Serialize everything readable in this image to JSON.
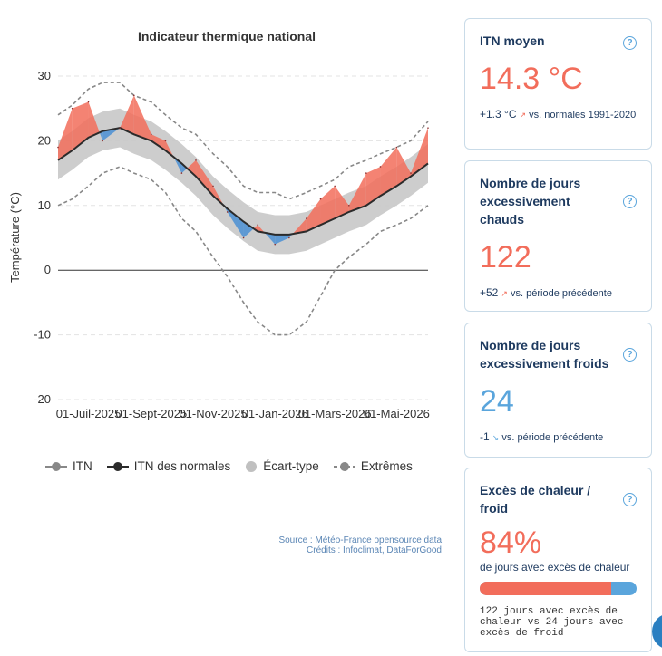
{
  "chart_data": {
    "type": "line",
    "title": "Indicateur thermique national",
    "ylabel": "Température (°C)",
    "xlabel": "",
    "ylim": [
      -20,
      30
    ],
    "yticks": [
      30,
      20,
      10,
      0,
      -10,
      -20
    ],
    "xticks": [
      "01-Juil-2025",
      "01-Sept-2025",
      "01-Nov-2025",
      "01-Jan-2026",
      "01-Mars-2026",
      "01-Mai-2026"
    ],
    "grid": true,
    "legend_position": "bottom",
    "x_dates": [
      "2025-06-01",
      "2025-06-15",
      "2025-07-01",
      "2025-07-15",
      "2025-08-01",
      "2025-08-15",
      "2025-09-01",
      "2025-09-15",
      "2025-10-01",
      "2025-10-15",
      "2025-11-01",
      "2025-11-15",
      "2025-12-01",
      "2025-12-15",
      "2026-01-01",
      "2026-01-15",
      "2026-02-01",
      "2026-02-15",
      "2026-03-01",
      "2026-03-15",
      "2026-04-01",
      "2026-04-15",
      "2026-05-01",
      "2026-05-15",
      "2026-06-01"
    ],
    "series": [
      {
        "name": "ITN",
        "values": [
          19,
          25,
          26,
          20,
          22,
          27,
          21,
          20,
          15,
          17,
          13,
          9,
          5,
          7,
          4,
          5,
          8,
          11,
          13,
          10,
          15,
          16,
          19,
          15,
          22
        ]
      },
      {
        "name": "ITN des normales",
        "values": [
          17,
          18.5,
          20.5,
          21.5,
          22,
          21,
          20,
          18.5,
          16.5,
          14.5,
          11.5,
          9.5,
          7.5,
          6,
          5.5,
          5.5,
          6,
          7,
          8,
          9,
          10,
          11.5,
          13,
          14.5,
          16.5
        ]
      },
      {
        "name": "Écart-type",
        "upper": [
          20,
          21.5,
          23.5,
          24.5,
          25,
          24,
          23,
          21.5,
          19.5,
          17.5,
          14.5,
          12.5,
          10.5,
          9,
          8.5,
          8.5,
          9,
          10,
          11,
          12,
          13,
          14.5,
          16,
          17.5,
          19.5
        ],
        "lower": [
          14,
          15.5,
          17.5,
          18.5,
          19,
          18,
          17,
          15.5,
          13.5,
          11.5,
          8.5,
          6.5,
          4.5,
          3,
          2.5,
          2.5,
          3,
          4,
          5,
          6,
          7,
          8.5,
          10,
          11.5,
          13.5
        ]
      },
      {
        "name": "Extrêmes",
        "upper": [
          24,
          25.5,
          28,
          29,
          29,
          27,
          26,
          24,
          22,
          21,
          18,
          16,
          13,
          12,
          12,
          11,
          12,
          13,
          14,
          16,
          17,
          18,
          19,
          20,
          23
        ],
        "lower": [
          10,
          11,
          13,
          15,
          16,
          15,
          14,
          12,
          8,
          6,
          2,
          -1,
          -5,
          -8,
          -10,
          -10,
          -8,
          -4,
          0,
          2,
          4,
          6,
          7,
          8,
          10
        ]
      }
    ]
  },
  "cards": [
    {
      "title": "ITN moyen",
      "value": "14.3 °C",
      "delta": "+1.3 °C",
      "delta_text": "vs. normales 1991-2020"
    },
    {
      "title": "Nombre de jours excessivement chauds",
      "value": "122",
      "delta": "+52",
      "delta_text": "vs. période précédente"
    },
    {
      "title": "Nombre de jours excessivement froids",
      "value": "24",
      "delta": "-1",
      "delta_text": "vs. période précédente"
    },
    {
      "title": "Excès de chaleur / froid",
      "value": "84%",
      "caption": "de jours avec excès de chaleur",
      "share": 0.84,
      "detail": "122 jours avec excès de chaleur vs 24 jours avec excès de froid"
    }
  ],
  "source": {
    "line1": "Source : Météo-France opensource data",
    "line2": "Crédits : Infoclimat, DataForGood"
  },
  "colors": {
    "hot": "#f26d5b",
    "cold": "#5aa5dc",
    "band": "#c8c8c8",
    "normal": "#2b2b2b",
    "extreme": "#888888",
    "heading": "#1e3a5f"
  }
}
